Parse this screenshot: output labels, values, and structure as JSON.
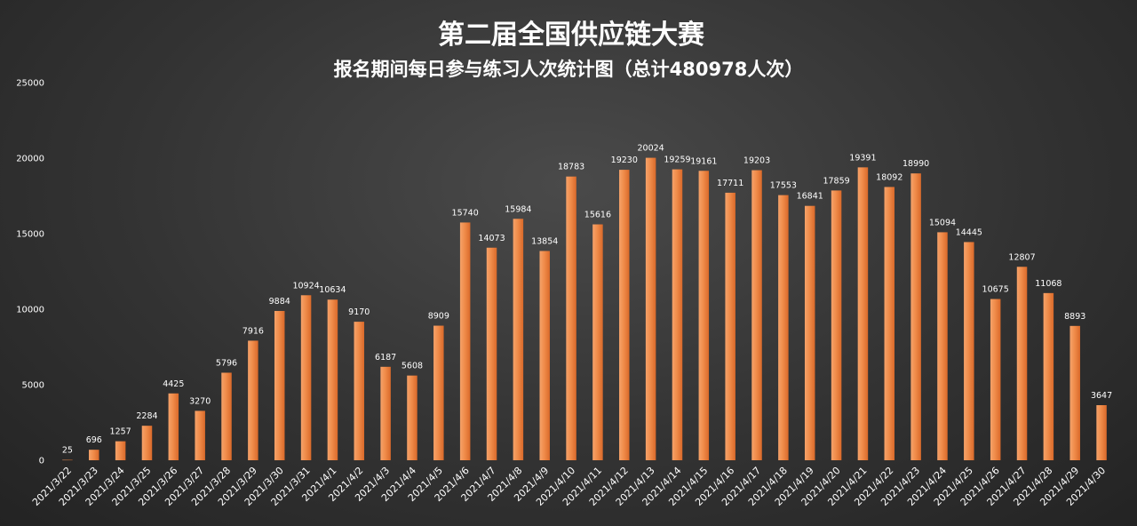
{
  "chart_data": {
    "type": "bar",
    "title": "第二届全国供应链大赛",
    "subtitle": "报名期间每日参与练习人次统计图（总计480978人次）",
    "xlabel": "",
    "ylabel": "",
    "ylim": [
      0,
      25000
    ],
    "yticks": [
      0,
      5000,
      10000,
      15000,
      20000,
      25000
    ],
    "grid": false,
    "legend": "none",
    "bar_color": "#ed7d31",
    "categories": [
      "2021/3/22",
      "2021/3/23",
      "2021/3/24",
      "2021/3/25",
      "2021/3/26",
      "2021/3/27",
      "2021/3/28",
      "2021/3/29",
      "2021/3/30",
      "2021/3/31",
      "2021/4/1",
      "2021/4/2",
      "2021/4/3",
      "2021/4/4",
      "2021/4/5",
      "2021/4/6",
      "2021/4/7",
      "2021/4/8",
      "2021/4/9",
      "2021/4/10",
      "2021/4/11",
      "2021/4/12",
      "2021/4/13",
      "2021/4/14",
      "2021/4/15",
      "2021/4/16",
      "2021/4/17",
      "2021/4/18",
      "2021/4/19",
      "2021/4/20",
      "2021/4/21",
      "2021/4/22",
      "2021/4/23",
      "2021/4/24",
      "2021/4/25",
      "2021/4/26",
      "2021/4/27",
      "2021/4/28",
      "2021/4/29",
      "2021/4/30"
    ],
    "values": [
      25,
      696,
      1257,
      2284,
      4425,
      3270,
      5796,
      7916,
      9884,
      10924,
      10634,
      9170,
      6187,
      5608,
      8909,
      15740,
      14073,
      15984,
      13854,
      18783,
      15616,
      19230,
      20024,
      19259,
      19161,
      17711,
      19203,
      17553,
      16841,
      17859,
      19391,
      18092,
      18990,
      15094,
      14445,
      10675,
      12807,
      11068,
      8893,
      3647
    ]
  }
}
